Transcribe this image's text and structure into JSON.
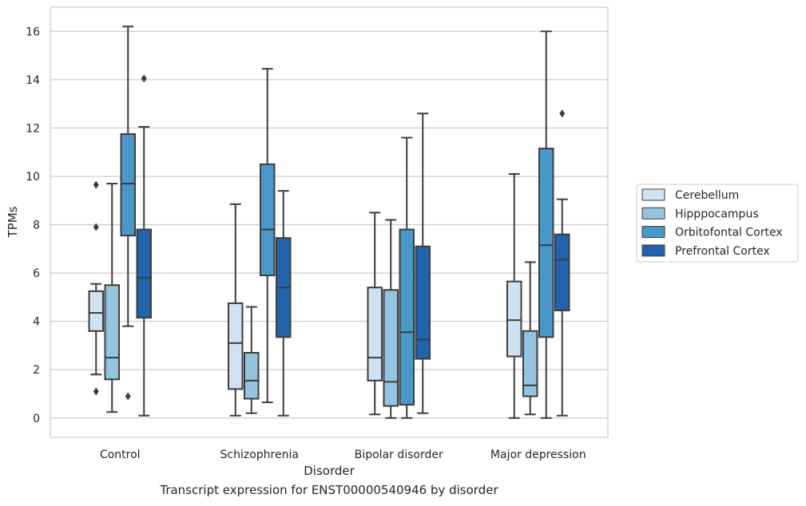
{
  "caption": "Transcript expression for ENST00000540946 by disorder",
  "chart_data": {
    "type": "box",
    "xlabel": "Disorder",
    "ylabel": "TPMs",
    "ylim": [
      -0.8,
      17
    ],
    "yticks": [
      0,
      2,
      4,
      6,
      8,
      10,
      12,
      14,
      16
    ],
    "grid": "y",
    "legend_placement": "center-right",
    "categories": [
      "Control",
      "Schizophrenia",
      "Bipolar disorder",
      "Major depression"
    ],
    "series": [
      {
        "name": "Cerebellum",
        "color": "#d0e1f2",
        "boxes": [
          {
            "whislo": 1.8,
            "q1": 3.6,
            "med": 4.35,
            "q3": 5.25,
            "whishi": 5.55,
            "fliers": [
              9.65,
              7.9,
              1.1
            ]
          },
          {
            "whislo": 0.1,
            "q1": 1.2,
            "med": 3.1,
            "q3": 4.75,
            "whishi": 8.85,
            "fliers": []
          },
          {
            "whislo": 0.15,
            "q1": 1.55,
            "med": 2.5,
            "q3": 5.4,
            "whishi": 8.5,
            "fliers": []
          },
          {
            "whislo": 0.0,
            "q1": 2.55,
            "med": 4.05,
            "q3": 5.65,
            "whishi": 10.1,
            "fliers": []
          }
        ]
      },
      {
        "name": "Hipppocampus",
        "color": "#94c4df",
        "boxes": [
          {
            "whislo": 0.25,
            "q1": 1.6,
            "med": 2.5,
            "q3": 5.5,
            "whishi": 9.7,
            "fliers": []
          },
          {
            "whislo": 0.2,
            "q1": 0.8,
            "med": 1.55,
            "q3": 2.7,
            "whishi": 4.6,
            "fliers": []
          },
          {
            "whislo": 0.0,
            "q1": 0.5,
            "med": 1.5,
            "q3": 5.3,
            "whishi": 8.2,
            "fliers": []
          },
          {
            "whislo": 0.15,
            "q1": 0.9,
            "med": 1.35,
            "q3": 3.6,
            "whishi": 6.45,
            "fliers": []
          }
        ]
      },
      {
        "name": "Orbitofontal Cortex",
        "color": "#4a98c9",
        "boxes": [
          {
            "whislo": 3.8,
            "q1": 7.55,
            "med": 9.7,
            "q3": 11.75,
            "whishi": 16.2,
            "fliers": [
              0.9
            ]
          },
          {
            "whislo": 0.65,
            "q1": 5.9,
            "med": 7.8,
            "q3": 10.5,
            "whishi": 14.45,
            "fliers": []
          },
          {
            "whislo": 0.0,
            "q1": 0.55,
            "med": 3.55,
            "q3": 7.8,
            "whishi": 11.6,
            "fliers": []
          },
          {
            "whislo": 0.0,
            "q1": 3.35,
            "med": 7.15,
            "q3": 11.15,
            "whishi": 16.0,
            "fliers": []
          }
        ]
      },
      {
        "name": "Prefrontal Cortex",
        "color": "#2164ab",
        "boxes": [
          {
            "whislo": 0.1,
            "q1": 4.15,
            "med": 5.8,
            "q3": 7.8,
            "whishi": 12.05,
            "fliers": [
              14.05
            ]
          },
          {
            "whislo": 0.1,
            "q1": 3.35,
            "med": 5.4,
            "q3": 7.45,
            "whishi": 9.4,
            "fliers": []
          },
          {
            "whislo": 0.2,
            "q1": 2.45,
            "med": 3.25,
            "q3": 7.1,
            "whishi": 12.6,
            "fliers": []
          },
          {
            "whislo": 0.1,
            "q1": 4.45,
            "med": 6.55,
            "q3": 7.6,
            "whishi": 9.05,
            "fliers": [
              12.6
            ]
          }
        ]
      }
    ]
  }
}
